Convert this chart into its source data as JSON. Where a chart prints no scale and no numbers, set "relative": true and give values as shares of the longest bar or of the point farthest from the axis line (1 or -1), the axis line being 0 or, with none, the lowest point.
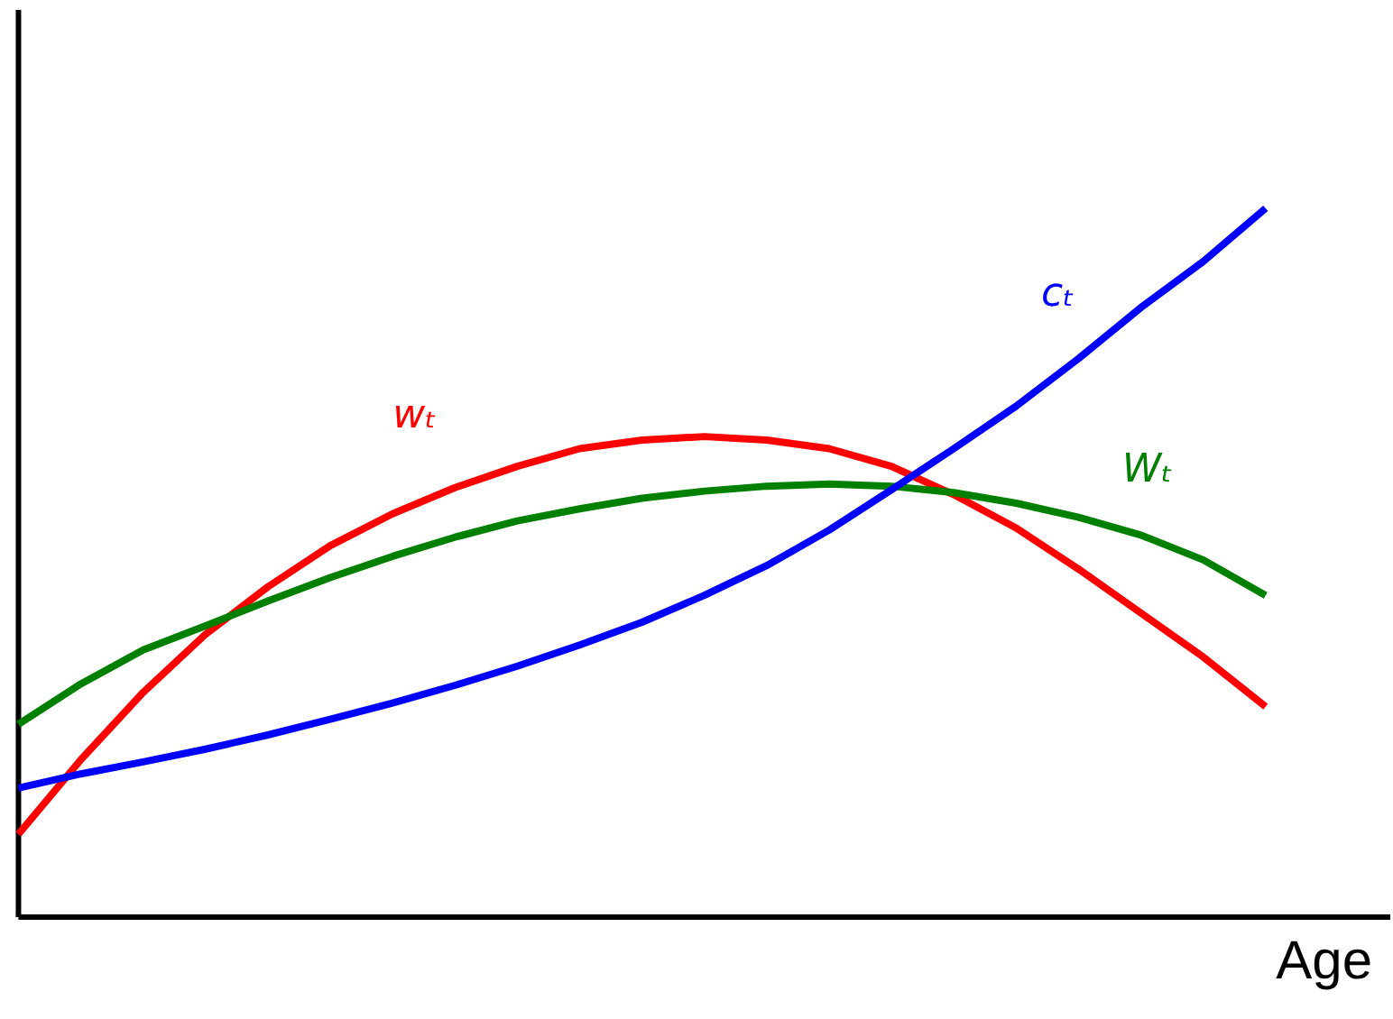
{
  "chart_data": {
    "type": "line",
    "relative": true,
    "xlabel": "Age",
    "marker": "none",
    "line_style": "solid",
    "categories": [
      null,
      null,
      null,
      null,
      null,
      null,
      null,
      null,
      null,
      null,
      null,
      null,
      null,
      null,
      null,
      null,
      null,
      null,
      null,
      null,
      null
    ],
    "series": [
      {
        "name": "wₜ",
        "color": "#ff0000",
        "values": [
          0.117,
          0.222,
          0.317,
          0.399,
          0.466,
          0.524,
          0.569,
          0.606,
          0.636,
          0.661,
          0.673,
          0.678,
          0.673,
          0.661,
          0.636,
          0.596,
          0.549,
          0.491,
          0.429,
          0.367,
          0.297
        ]
      },
      {
        "name": "Wₜ",
        "color": "#008000",
        "values": [
          0.272,
          0.329,
          0.377,
          0.411,
          0.446,
          0.479,
          0.509,
          0.536,
          0.559,
          0.576,
          0.591,
          0.601,
          0.608,
          0.611,
          0.608,
          0.599,
          0.584,
          0.564,
          0.539,
          0.504,
          0.454
        ]
      },
      {
        "name": "cₜ",
        "color": "#0000ff",
        "values": [
          0.182,
          0.202,
          0.219,
          0.237,
          0.257,
          0.279,
          0.302,
          0.327,
          0.354,
          0.384,
          0.416,
          0.454,
          0.496,
          0.546,
          0.603,
          0.661,
          0.721,
          0.788,
          0.86,
          0.925,
          1.0
        ]
      }
    ]
  }
}
